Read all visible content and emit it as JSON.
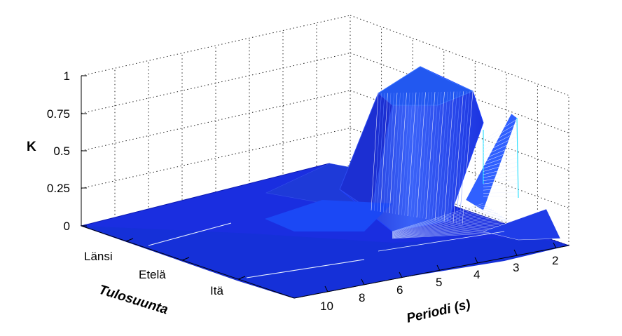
{
  "chart_data": {
    "type": "surface3d",
    "title": "",
    "zlabel": "K",
    "xlabel": "Tulosuunta",
    "ylabel": "Periodi (s)",
    "x_categories": [
      "Länsi",
      "Etelä",
      "Itä"
    ],
    "y_ticks": [
      "10",
      "8",
      "6",
      "5",
      "4",
      "3",
      "2"
    ],
    "z_ticks": [
      "0",
      "0.25",
      "0.5",
      "0.75",
      "1"
    ],
    "zlim": [
      0,
      1
    ],
    "grid": true,
    "colormap": "blue surface with white/cyan mesh edges",
    "description_values": {
      "x": [
        "Länsi",
        "Etelä",
        "Itä"
      ],
      "periods": [
        10,
        8,
        6,
        5,
        4,
        3,
        2
      ],
      "K": [
        [
          0.0,
          0.05,
          0.08,
          0.1,
          0.1,
          0.15,
          0.05
        ],
        [
          0.0,
          0.02,
          0.05,
          0.95,
          1.0,
          0.9,
          0.1
        ],
        [
          0.0,
          0.01,
          0.02,
          0.05,
          0.1,
          0.75,
          0.05
        ]
      ]
    }
  }
}
